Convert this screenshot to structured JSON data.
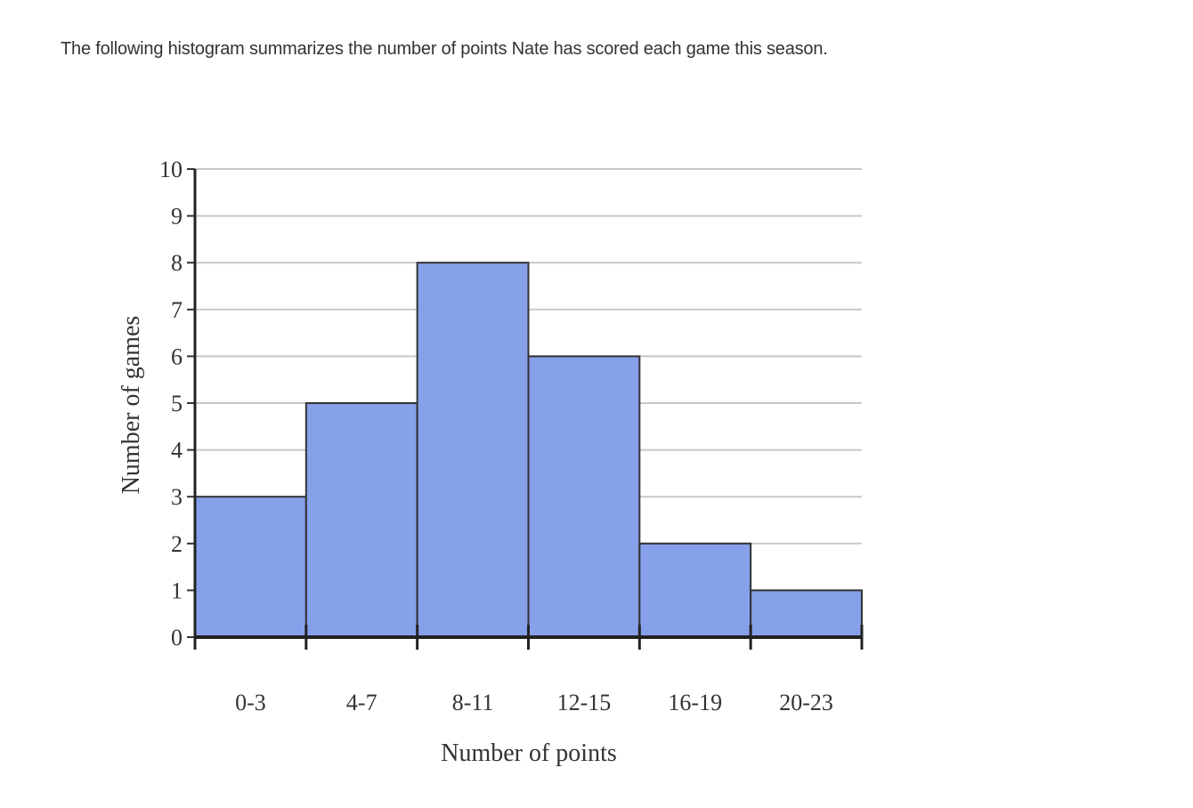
{
  "intro_text": "The following histogram summarizes the number of points Nate has scored each game this season.",
  "chart_data": {
    "type": "bar",
    "subtype": "histogram",
    "categories": [
      "0-3",
      "4-7",
      "8-11",
      "12-15",
      "16-19",
      "20-23"
    ],
    "values": [
      3,
      5,
      8,
      6,
      2,
      1
    ],
    "xlabel": "Number of points",
    "ylabel": "Number of games",
    "ylim": [
      0,
      10
    ],
    "yticks": [
      0,
      1,
      2,
      3,
      4,
      5,
      6,
      7,
      8,
      9,
      10
    ],
    "grid": true,
    "bar_color": "#86a0ea",
    "bar_edge_color": "#333333"
  }
}
